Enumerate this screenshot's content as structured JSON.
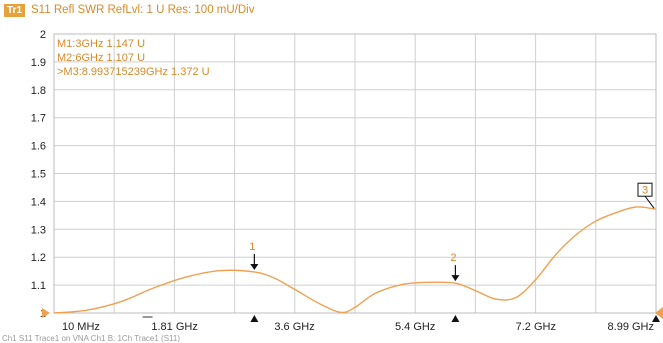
{
  "header": {
    "trace_badge": "Tr1",
    "trace_info": "S11 Refl SWR RefLvl: 1  U Res: 100 mU/Div"
  },
  "colors": {
    "trace": "#f0a050",
    "text": "#d98a2a",
    "grid": "#cfcfcf",
    "axis_text": "#222222"
  },
  "chart_data": {
    "type": "line",
    "title": "S11 Refl SWR",
    "ylim": [
      1,
      2
    ],
    "y_ticks": [
      "1",
      "1.1",
      "1.2",
      "1.3",
      "1.4",
      "1.5",
      "1.6",
      "1.7",
      "1.8",
      "1.9",
      "2"
    ],
    "xlim_ghz": [
      0.01,
      8.993715239
    ],
    "x_tick_labels": [
      "10 MHz",
      "1.81 GHz",
      "3.6 GHz",
      "5.4 GHz",
      "7.2 GHz",
      "8.99 GHz"
    ],
    "x_tick_positions_ghz": [
      0.01,
      1.81,
      3.6,
      5.4,
      7.2,
      8.99
    ],
    "series": [
      {
        "x": [
          0.01,
          0.5,
          1.0,
          1.5,
          2.0,
          2.5,
          3.0,
          3.3,
          3.6,
          4.0,
          4.3,
          4.5,
          4.8,
          5.2,
          5.6,
          6.0,
          6.3,
          6.6,
          6.9,
          7.2,
          7.5,
          7.8,
          8.1,
          8.4,
          8.7,
          8.993715239
        ],
        "y": [
          1.0,
          1.01,
          1.04,
          1.09,
          1.13,
          1.152,
          1.147,
          1.125,
          1.085,
          1.03,
          1.002,
          1.02,
          1.07,
          1.102,
          1.11,
          1.107,
          1.08,
          1.05,
          1.055,
          1.12,
          1.21,
          1.28,
          1.33,
          1.36,
          1.38,
          1.372
        ]
      }
    ],
    "markers": [
      {
        "id": "1",
        "x": 3.0,
        "y": 1.147,
        "label": "M1:3GHz  1.147  U"
      },
      {
        "id": "2",
        "x": 6.0,
        "y": 1.107,
        "label": "M2:6GHz  1.107  U"
      },
      {
        "id": "3",
        "x": 8.993715239,
        "y": 1.372,
        "label": ">M3:8.993715239GHz  1.372  U"
      }
    ]
  },
  "footer": {
    "text": "Ch1  S11 Trace1 on  VNA  Ch1 B:   1Ch  Trace1  (S11)"
  }
}
